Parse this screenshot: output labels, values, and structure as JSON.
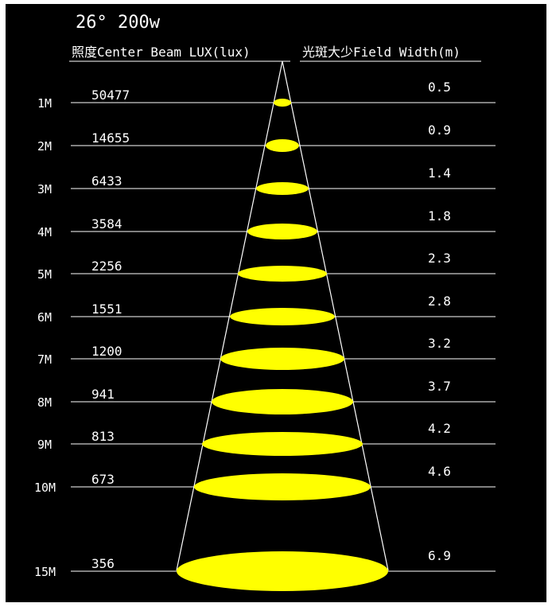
{
  "diagram": {
    "title": "26° 200w",
    "header_lux": "照度Center Beam LUX(lux)",
    "header_width": "光斑大少Field Width(m)",
    "beam_color": "#ffff00",
    "line_color": "#ffffff",
    "background": "#000000",
    "rows": [
      {
        "distance": "1M",
        "lux": "50477",
        "width": "0.5"
      },
      {
        "distance": "2M",
        "lux": "14655",
        "width": "0.9"
      },
      {
        "distance": "3M",
        "lux": "6433",
        "width": "1.4"
      },
      {
        "distance": "4M",
        "lux": "3584",
        "width": "1.8"
      },
      {
        "distance": "5M",
        "lux": "2256",
        "width": "2.3"
      },
      {
        "distance": "6M",
        "lux": "1551",
        "width": "2.8"
      },
      {
        "distance": "7M",
        "lux": "1200",
        "width": "3.2"
      },
      {
        "distance": "8M",
        "lux": "941",
        "width": "3.7"
      },
      {
        "distance": "9M",
        "lux": "813",
        "width": "4.2"
      },
      {
        "distance": "10M",
        "lux": "673",
        "width": "4.6"
      },
      {
        "distance": "15M",
        "lux": "356",
        "width": "6.9"
      }
    ]
  }
}
